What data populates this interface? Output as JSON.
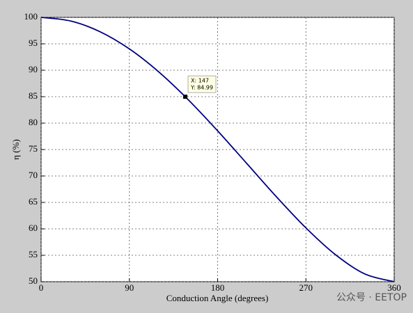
{
  "chart_data": {
    "type": "line",
    "xlabel": "Conduction Angle (degrees)",
    "ylabel": "η (%)",
    "x": [
      0,
      30,
      60,
      90,
      120,
      150,
      180,
      210,
      240,
      270,
      300,
      330,
      360
    ],
    "values": [
      100,
      99.32,
      97.3,
      94.04,
      89.68,
      84.43,
      78.54,
      72.3,
      66.05,
      60.18,
      55.13,
      51.47,
      50
    ],
    "color": "#000080",
    "xlim": [
      0,
      360
    ],
    "xticks": [
      0,
      90,
      180,
      270,
      360
    ],
    "ylim": [
      50,
      100
    ],
    "yticks": [
      50,
      55,
      60,
      65,
      70,
      75,
      80,
      85,
      90,
      95,
      100
    ],
    "grid": true,
    "datatip": {
      "x": 147,
      "y": 84.99,
      "x_label": "X: 147",
      "y_label": "Y: 84.99"
    }
  },
  "watermark": "公众号 · EETOP"
}
